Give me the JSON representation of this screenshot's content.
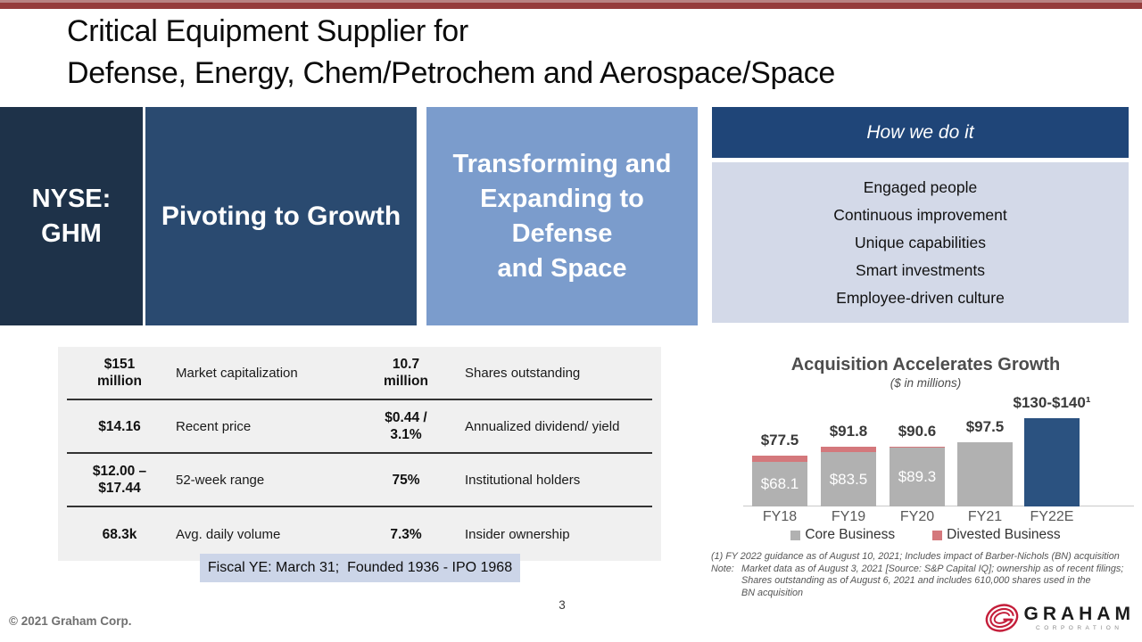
{
  "slide": {
    "title_line1": "Critical Equipment Supplier for",
    "title_line2": "Defense, Energy, Chem/Petrochem and Aerospace/Space",
    "page_number": "3",
    "copyright": "© 2021 Graham Corp."
  },
  "banner": {
    "ticker_line1": "NYSE:",
    "ticker_line2": "GHM",
    "pivoting": "Pivoting to Growth",
    "transforming_lines": [
      "Transforming and",
      "Expanding to",
      "Defense",
      "and Space"
    ]
  },
  "how_we_do_it": {
    "title": "How we do it",
    "items": [
      "Engaged people",
      "Continuous improvement",
      "Unique capabilities",
      "Smart investments",
      "Employee-driven culture"
    ]
  },
  "stats_table": {
    "rows": [
      {
        "value1": "$151\nmillion",
        "label1": "Market capitalization",
        "value2": "10.7\nmillion",
        "label2": "Shares outstanding"
      },
      {
        "value1": "$14.16",
        "label1": "Recent price",
        "value2": "$0.44 /\n3.1%",
        "label2": "Annualized dividend/ yield"
      },
      {
        "value1": "$12.00 –\n$17.44",
        "label1": "52-week range",
        "value2": "75%",
        "label2": "Institutional holders"
      },
      {
        "value1": "68.3k",
        "label1": "Avg. daily volume",
        "value2": "7.3%",
        "label2": "Insider ownership"
      }
    ]
  },
  "fiscal_note": "Fiscal YE: March 31;  Founded 1936 - IPO 1968",
  "chart_data": {
    "type": "bar",
    "stacked": true,
    "title": "Acquisition Accelerates Growth",
    "subtitle": "($ in millions)",
    "categories": [
      "FY18",
      "FY19",
      "FY20",
      "FY21",
      "FY22E"
    ],
    "series": [
      {
        "name": "Core Business",
        "color": "#b1b1b1",
        "values": [
          68.1,
          83.5,
          89.3,
          97.5,
          0
        ]
      },
      {
        "name": "Divested Business",
        "color": "#d4787c",
        "values": [
          9.4,
          8.3,
          1.3,
          0,
          0
        ]
      },
      {
        "name": "FY22 Guidance",
        "color": "#2b5280",
        "values": [
          0,
          0,
          0,
          0,
          135
        ]
      }
    ],
    "total_labels": [
      "$77.5",
      "$91.8",
      "$90.6",
      "$97.5",
      "$130-$140¹"
    ],
    "inner_labels": [
      "$68.1",
      "$83.5",
      "$89.3",
      "",
      ""
    ],
    "ylim": [
      0,
      140
    ],
    "grid": false,
    "legend_position": "bottom",
    "legend": [
      {
        "label": "Core Business",
        "color": "#b1b1b1"
      },
      {
        "label": "Divested Business",
        "color": "#d4787c"
      }
    ]
  },
  "footnotes": {
    "line1": "(1) FY 2022 guidance as of August 10, 2021;  Includes impact of Barber-Nichols (BN) acquisition",
    "note_label": "Note:",
    "note_lines": [
      "Market data as of August 3, 2021 [Source: S&P Capital IQ]; ownership as of recent filings;",
      "Shares outstanding as of August 6, 2021 and includes 610,000 shares used in the",
      "BN acquisition"
    ]
  },
  "logo": {
    "brand": "GRAHAM",
    "subtext": "CORPORATION",
    "accent_color": "#c41e3a"
  }
}
